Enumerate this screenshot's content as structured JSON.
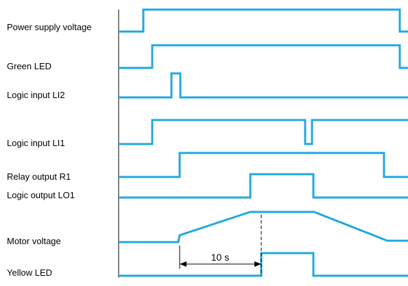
{
  "signals": [
    {
      "label": "Power supply voltage",
      "color": "#1fa8e0"
    },
    {
      "label": "Green LED",
      "color": "#1fa8e0"
    },
    {
      "label": "Logic input LI2",
      "color": "#1fa8e0"
    },
    {
      "label": "Logic input LI1",
      "color": "#1fa8e0"
    },
    {
      "label": "Relay output R1",
      "color": "#1fa8e0"
    },
    {
      "label": "Logic output LO1",
      "color": "#1fa8e0"
    },
    {
      "label": "Motor voltage",
      "color": "#1fa8e0"
    },
    {
      "label": "Yellow LED",
      "color": "#1fa8e0"
    }
  ],
  "delay": {
    "label": "10 s"
  },
  "axis_color": "#000000"
}
